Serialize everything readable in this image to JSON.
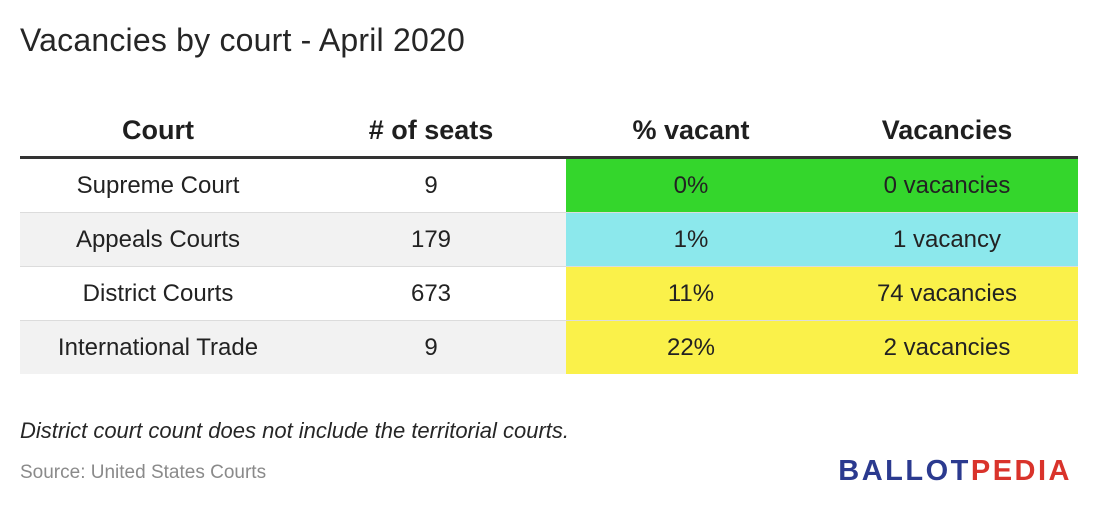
{
  "title": "Vacancies by court - April 2020",
  "chart_data": {
    "type": "table",
    "title": "Vacancies by court - April 2020",
    "columns": [
      "Court",
      "# of seats",
      "% vacant",
      "Vacancies"
    ],
    "rows": [
      {
        "court": "Supreme Court",
        "seats": "9",
        "pct_vacant": "0%",
        "vacancies": "0 vacancies",
        "color": "#34d62c"
      },
      {
        "court": "Appeals Courts",
        "seats": "179",
        "pct_vacant": "1%",
        "vacancies": "1 vacancy",
        "color": "#8ce8ec"
      },
      {
        "court": "District Courts",
        "seats": "673",
        "pct_vacant": "11%",
        "vacancies": "74 vacancies",
        "color": "#faf14a"
      },
      {
        "court": "International Trade",
        "seats": "9",
        "pct_vacant": "22%",
        "vacancies": "2 vacancies",
        "color": "#faf14a"
      }
    ]
  },
  "note": "District court count does not include the territorial courts.",
  "source": "Source: United States Courts",
  "logo": {
    "part1": "BALLOT",
    "part2": "PEDIA"
  },
  "colors": {
    "ballot_blue": "#2b3a8f",
    "pedia_red": "#d9332b",
    "header_rule": "#333333"
  }
}
